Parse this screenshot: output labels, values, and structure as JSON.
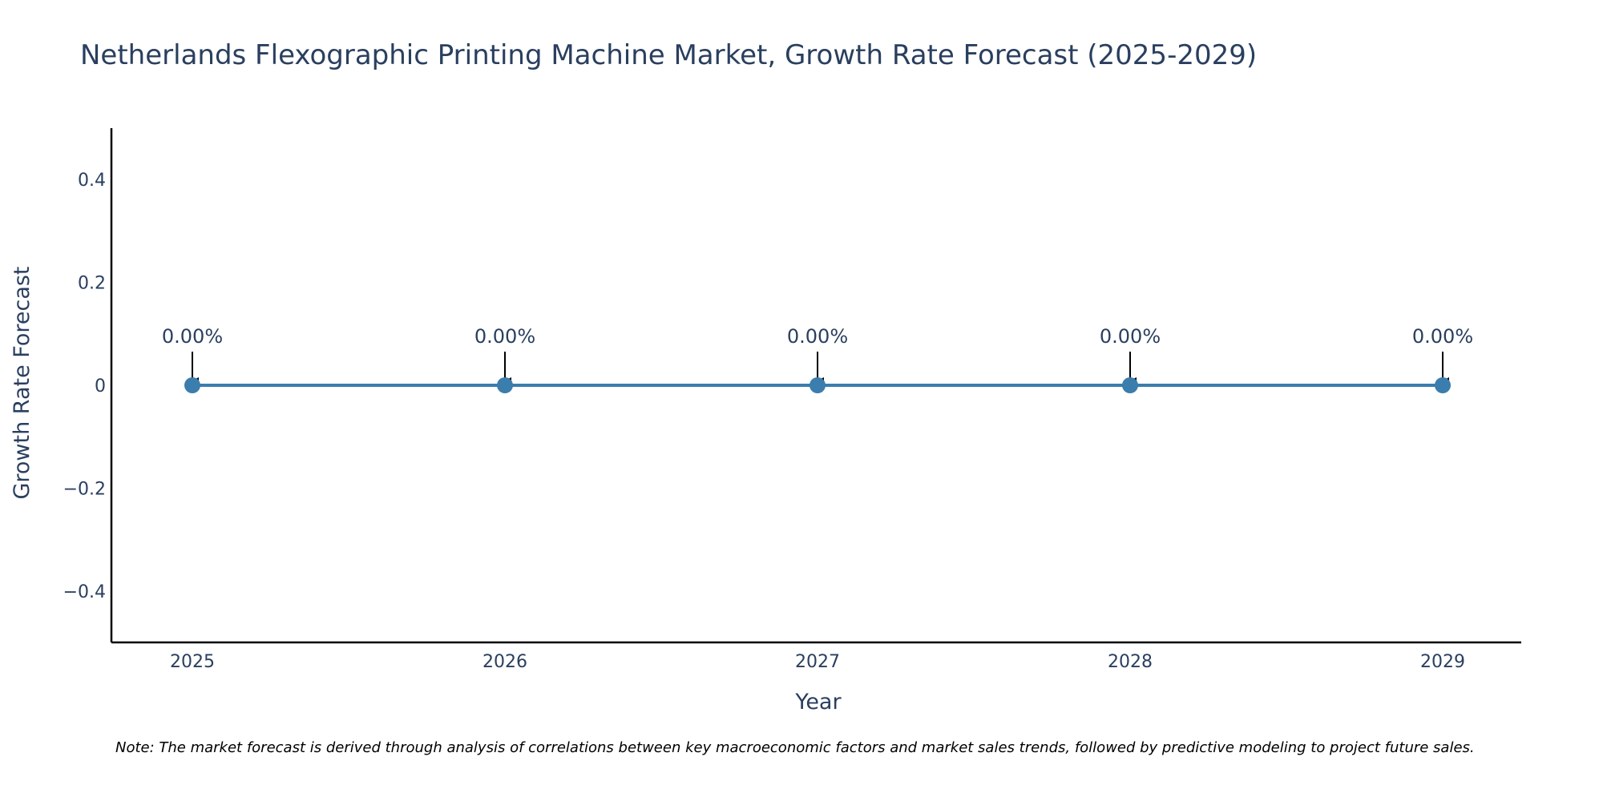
{
  "chart_data": {
    "type": "line",
    "title": "Netherlands Flexographic Printing Machine Market, Growth Rate Forecast (2025-2029)",
    "xlabel": "Year",
    "ylabel": "Growth Rate Forecast",
    "categories": [
      "2025",
      "2026",
      "2027",
      "2028",
      "2029"
    ],
    "series": [
      {
        "name": "Growth Rate Forecast",
        "values": [
          0,
          0,
          0,
          0,
          0
        ],
        "labels": [
          "0.00%",
          "0.00%",
          "0.00%",
          "0.00%",
          "0.00%"
        ]
      }
    ],
    "ylim": [
      -0.5,
      0.5
    ],
    "yticks": [
      0.4,
      0.2,
      0,
      -0.2,
      -0.4
    ],
    "ytick_labels": [
      "0.4",
      "0.2",
      "0",
      "−0.2",
      "−0.4"
    ],
    "grid": false,
    "legend": "none",
    "note": "Note: The market forecast is derived through analysis of correlations between key macroeconomic factors and market sales trends, followed by predictive modeling to project future sales."
  },
  "colors": {
    "line": "#3b7dad",
    "marker": "#3b7dad",
    "axis": "#000000",
    "text": "#2a3f5f",
    "arrow": "#000000"
  }
}
